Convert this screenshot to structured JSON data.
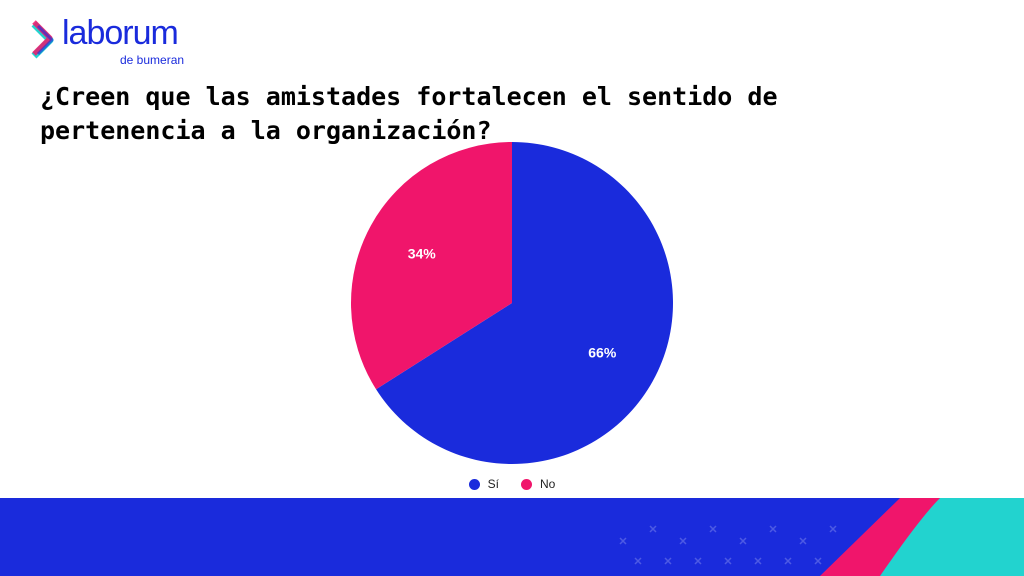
{
  "brand": {
    "name": "laborum",
    "tagline": "de bumeran",
    "colors": {
      "primary": "#1a2bdc",
      "accent": "#f0156b",
      "teal": "#22d3cf"
    }
  },
  "chart_data": {
    "type": "pie",
    "title": "¿Creen que las amistades fortalecen el sentido de pertenencia a la organización?",
    "categories": [
      "Sí",
      "No"
    ],
    "values": [
      66,
      34
    ],
    "labels": [
      "66%",
      "34%"
    ],
    "colors": [
      "#1a2bdc",
      "#f0156b"
    ],
    "legend_position": "bottom"
  }
}
